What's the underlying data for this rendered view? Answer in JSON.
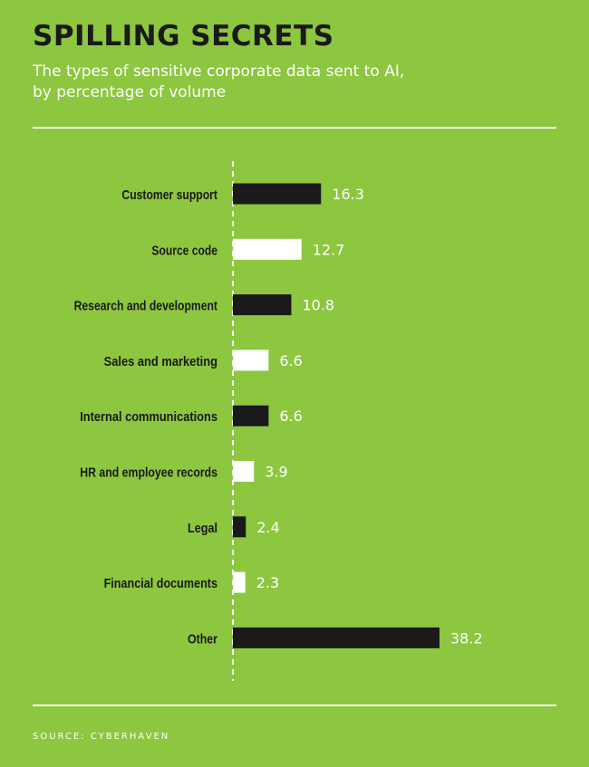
{
  "title": "SPILLING SECRETS",
  "subtitle": "The types of sensitive corporate data sent to AI, by percentage of volume",
  "source": "SOURCE: CYBERHAVEN",
  "colors": {
    "background": "#8dc63f",
    "dark_bar": "#1a1a1a",
    "light_bar": "#ffffff",
    "text": "#ffffff",
    "title": "#1a1a1a"
  },
  "chart_data": {
    "type": "bar",
    "orientation": "horizontal",
    "categories": [
      "Customer support",
      "Source code",
      "Research and development",
      "Sales and marketing",
      "Internal communications",
      "HR and employee records",
      "Legal",
      "Financial documents",
      "Other"
    ],
    "values": [
      16.3,
      12.7,
      10.8,
      6.6,
      6.6,
      3.9,
      2.4,
      2.3,
      38.2
    ],
    "value_labels": [
      "16.3",
      "12.7",
      "10.8",
      "6.6",
      "6.6",
      "3.9",
      "2.4",
      "2.3",
      "38.2"
    ],
    "bar_colors": [
      "dark",
      "light",
      "dark",
      "light",
      "dark",
      "light",
      "dark",
      "light",
      "dark"
    ],
    "xlim": [
      0,
      38.2
    ],
    "grid": false,
    "baseline": "dashed"
  }
}
